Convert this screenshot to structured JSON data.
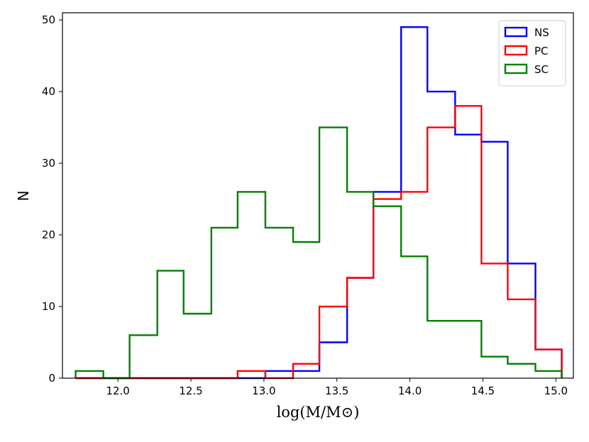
{
  "chart_data": {
    "type": "histogram",
    "title": "",
    "xlabel": "log(M/M⊙)",
    "ylabel": "N",
    "xlim": [
      11.62,
      15.12
    ],
    "ylim": [
      0,
      51
    ],
    "xticks": [
      12.0,
      12.5,
      13.0,
      13.5,
      14.0,
      14.5,
      15.0
    ],
    "xtick_labels": [
      "12.0",
      "12.5",
      "13.0",
      "13.5",
      "14.0",
      "14.5",
      "15.0"
    ],
    "yticks": [
      0,
      10,
      20,
      30,
      40,
      50
    ],
    "ytick_labels": [
      "0",
      "10",
      "20",
      "30",
      "40",
      "50"
    ],
    "grid": false,
    "legend_position": "top-right",
    "bin_edges": [
      11.71,
      11.9,
      12.08,
      12.27,
      12.45,
      12.64,
      12.82,
      13.01,
      13.2,
      13.38,
      13.57,
      13.75,
      13.94,
      14.12,
      14.31,
      14.49,
      14.67,
      14.86,
      15.04
    ],
    "series": [
      {
        "name": "NS",
        "color": "#0000ff",
        "counts": [
          0,
          0,
          0,
          0,
          0,
          0,
          0,
          1,
          1,
          5,
          14,
          26,
          49,
          40,
          34,
          33,
          16,
          4
        ]
      },
      {
        "name": "PC",
        "color": "#ff0000",
        "counts": [
          0,
          0,
          0,
          0,
          0,
          0,
          1,
          0,
          2,
          10,
          14,
          25,
          26,
          35,
          38,
          16,
          11,
          4
        ]
      },
      {
        "name": "SC",
        "color": "#008000",
        "counts": [
          1,
          0,
          6,
          15,
          9,
          21,
          26,
          21,
          19,
          35,
          26,
          24,
          17,
          8,
          8,
          3,
          2,
          1
        ]
      }
    ]
  }
}
